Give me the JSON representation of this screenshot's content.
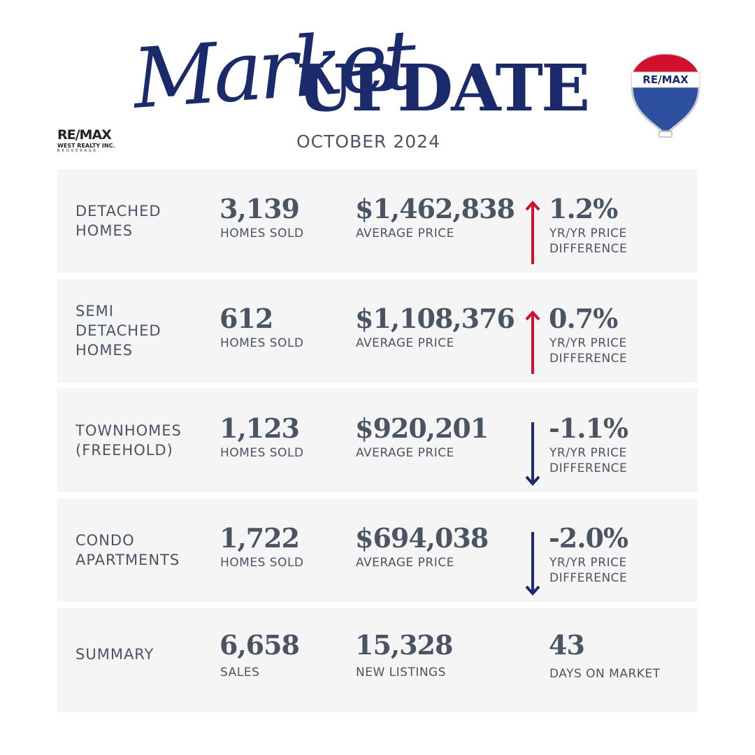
{
  "header": {
    "script_title": "Market",
    "title": "UPDATE",
    "subtitle": "OCTOBER 2024",
    "logo": {
      "brand": "RE/MAX",
      "office": "WEST REALTY INC.",
      "tag": "BROKERAGE"
    },
    "balloon_text": "RE/MAX"
  },
  "colors": {
    "up": "#d0102c",
    "down": "#1b2a6b"
  },
  "rows": [
    {
      "label": [
        "DETACHED",
        "HOMES"
      ],
      "sold": "3,139",
      "sold_label": "HOMES SOLD",
      "price": "$1,462,838",
      "price_label": "AVERAGE PRICE",
      "change": "1.2%",
      "change_label": "YR/YR PRICE DIFFERENCE",
      "direction": "up"
    },
    {
      "label": [
        "SEMI",
        "DETACHED",
        "HOMES"
      ],
      "sold": "612",
      "sold_label": "HOMES SOLD",
      "price": "$1,108,376",
      "price_label": "AVERAGE PRICE",
      "change": "0.7%",
      "change_label": "YR/YR PRICE DIFFERENCE",
      "direction": "up"
    },
    {
      "label": [
        "TOWNHOMES",
        "(FREEHOLD)"
      ],
      "sold": "1,123",
      "sold_label": "HOMES SOLD",
      "price": "$920,201",
      "price_label": "AVERAGE PRICE",
      "change": "-1.1%",
      "change_label": "YR/YR PRICE DIFFERENCE",
      "direction": "down"
    },
    {
      "label": [
        "CONDO",
        "APARTMENTS"
      ],
      "sold": "1,722",
      "sold_label": "HOMES SOLD",
      "price": "$694,038",
      "price_label": "AVERAGE PRICE",
      "change": "-2.0%",
      "change_label": "YR/YR PRICE DIFFERENCE",
      "direction": "down"
    }
  ],
  "summary": {
    "label": "SUMMARY",
    "sales": "6,658",
    "sales_label": "SALES",
    "listings": "15,328",
    "listings_label": "NEW LISTINGS",
    "days": "43",
    "days_label": "DAYS ON MARKET"
  }
}
